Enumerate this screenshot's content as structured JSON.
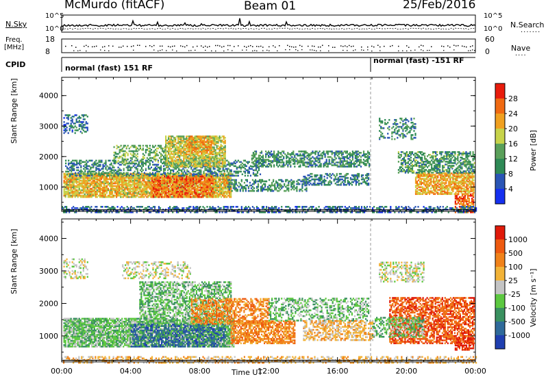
{
  "header": {
    "station": "McMurdo (fitACF)",
    "beam": "Beam 01",
    "date": "25/Feb/2016"
  },
  "strip_labels": {
    "nsky": "N.Sky",
    "nsky_hi": "10^5",
    "nsky_lo": "10^0",
    "nsearch": "N.Search",
    "nsearch_hi": "10^5",
    "nsearch_lo": "10^0",
    "freq_l1": "Freq.",
    "freq_l2": "[MHz]",
    "freq_hi": "18",
    "freq_lo": "8",
    "nave": "Nave",
    "nave_hi": "60",
    "nave_lo": "0",
    "cpid": "CPID",
    "cpid_mode1": "normal (fast) 151 RF",
    "cpid_mode2": "normal (fast) -151 RF"
  },
  "colors": {
    "power": [
      "#1530f0",
      "#2a55b5",
      "#2f8a56",
      "#5aa05a",
      "#c7d34a",
      "#f0a020",
      "#f06a12",
      "#e81c0c"
    ],
    "velocity": [
      "#1f3fb0",
      "#2f6a9a",
      "#3a9160",
      "#5cc840",
      "#c4c4c4",
      "#f2b338",
      "#f0821a",
      "#ee5a10",
      "#e01a0a"
    ]
  },
  "chart_data": [
    {
      "type": "heatmap",
      "name": "power",
      "ylabel": "Slant Range [km]",
      "yticks": [
        "1000",
        "2000",
        "3000",
        "4000"
      ],
      "ylim": [
        200,
        4600
      ],
      "xlim_hours": [
        0,
        24
      ],
      "colorbar": {
        "label": "Power [dB]",
        "ticks": [
          "4",
          "8",
          "12",
          "16",
          "20",
          "24",
          "28"
        ],
        "range": [
          0,
          32
        ]
      },
      "regions": [
        {
          "t0": 0.1,
          "t1": 9.8,
          "r0": 700,
          "r1": 1500,
          "value": 20,
          "density": 0.85
        },
        {
          "t0": 5.2,
          "t1": 8.8,
          "r0": 700,
          "r1": 1400,
          "value": 26,
          "density": 0.6
        },
        {
          "t0": 0.2,
          "t1": 11.5,
          "r0": 1400,
          "r1": 1900,
          "value": 10,
          "density": 0.45
        },
        {
          "t0": 6.0,
          "t1": 9.5,
          "r0": 1700,
          "r1": 2700,
          "value": 18,
          "density": 0.75
        },
        {
          "t0": 7.2,
          "t1": 8.8,
          "r0": 2100,
          "r1": 2700,
          "value": 23,
          "density": 0.55
        },
        {
          "t0": 3.0,
          "t1": 6.0,
          "r0": 1800,
          "r1": 2400,
          "value": 14,
          "density": 0.4
        },
        {
          "t0": 9.6,
          "t1": 14.2,
          "r0": 900,
          "r1": 1300,
          "value": 11,
          "density": 0.5
        },
        {
          "t0": 11.0,
          "t1": 17.8,
          "r0": 1700,
          "r1": 2200,
          "value": 11,
          "density": 0.55
        },
        {
          "t0": 14.0,
          "t1": 17.8,
          "r0": 1100,
          "r1": 1500,
          "value": 9,
          "density": 0.5
        },
        {
          "t0": 20.5,
          "t1": 23.9,
          "r0": 800,
          "r1": 1500,
          "value": 22,
          "density": 0.75
        },
        {
          "t0": 19.5,
          "t1": 23.9,
          "r0": 1500,
          "r1": 2200,
          "value": 12,
          "density": 0.55
        },
        {
          "t0": 18.4,
          "t1": 20.5,
          "r0": 2600,
          "r1": 3300,
          "value": 10,
          "density": 0.35
        },
        {
          "t0": 0.1,
          "t1": 1.5,
          "r0": 2800,
          "r1": 3400,
          "value": 8,
          "density": 0.45
        },
        {
          "t0": 22.8,
          "t1": 23.9,
          "r0": 200,
          "r1": 800,
          "value": 26,
          "density": 0.6
        },
        {
          "t0": 0.0,
          "t1": 24.0,
          "r0": 200,
          "r1": 420,
          "value": 7,
          "density": 0.45
        }
      ]
    },
    {
      "type": "heatmap",
      "name": "velocity",
      "ylabel": "Slant Range [km]",
      "yticks": [
        "1000",
        "2000",
        "3000",
        "4000"
      ],
      "ylim": [
        200,
        4600
      ],
      "xlim_hours": [
        0,
        24
      ],
      "xticks": [
        "00:00",
        "04:00",
        "08:00",
        "12:00",
        "16:00",
        "20:00",
        "00:00"
      ],
      "xlabel": "Time UT",
      "colorbar": {
        "label": "Velocity [m s⁻¹]",
        "ticks": [
          "1000",
          "500",
          "100",
          "25",
          "-25",
          "-100",
          "-500",
          "-1000"
        ]
      },
      "regions": [
        {
          "t0": 0.1,
          "t1": 10.0,
          "r0": 700,
          "r1": 1600,
          "value": 3,
          "density": 0.85
        },
        {
          "t0": 4.0,
          "t1": 9.5,
          "r0": 700,
          "r1": 1400,
          "value": 1,
          "density": 0.5
        },
        {
          "t0": 4.5,
          "t1": 9.8,
          "r0": 1600,
          "r1": 2700,
          "value": 3,
          "density": 0.6
        },
        {
          "t0": 7.5,
          "t1": 12.0,
          "r0": 1400,
          "r1": 2200,
          "value": 6,
          "density": 0.55
        },
        {
          "t0": 9.8,
          "t1": 13.5,
          "r0": 800,
          "r1": 1500,
          "value": 6,
          "density": 0.7
        },
        {
          "t0": 12.0,
          "t1": 17.8,
          "r0": 1500,
          "r1": 2200,
          "value": 3,
          "density": 0.45
        },
        {
          "t0": 14.0,
          "t1": 18.0,
          "r0": 900,
          "r1": 1500,
          "value": 5,
          "density": 0.55
        },
        {
          "t0": 19.0,
          "t1": 23.9,
          "r0": 800,
          "r1": 2200,
          "value": 7,
          "density": 0.65
        },
        {
          "t0": 18.0,
          "t1": 21.0,
          "r0": 1000,
          "r1": 1600,
          "value": 3,
          "density": 0.5
        },
        {
          "t0": 22.8,
          "t1": 23.9,
          "r0": 600,
          "r1": 1000,
          "value": 8,
          "density": 0.65
        },
        {
          "t0": 3.5,
          "t1": 7.5,
          "r0": 2800,
          "r1": 3300,
          "value": 4,
          "density": 0.35
        },
        {
          "t0": 18.4,
          "t1": 21.0,
          "r0": 2700,
          "r1": 3300,
          "value": 4,
          "density": 0.4
        },
        {
          "t0": 0.1,
          "t1": 1.5,
          "r0": 2800,
          "r1": 3400,
          "value": 4,
          "density": 0.35
        },
        {
          "t0": 0.0,
          "t1": 24.0,
          "r0": 200,
          "r1": 420,
          "value": 5,
          "density": 0.4
        }
      ]
    }
  ]
}
